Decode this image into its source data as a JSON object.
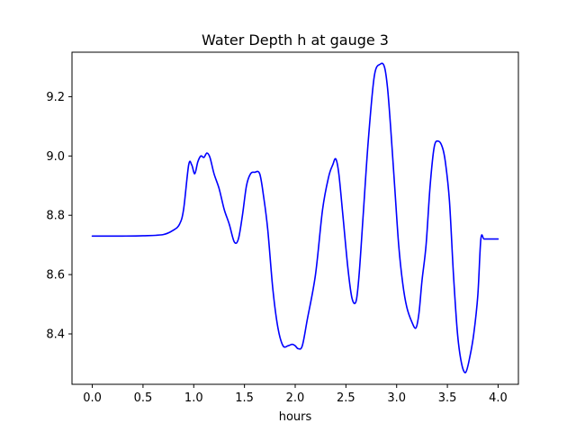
{
  "chart_data": {
    "type": "line",
    "title": "Water Depth h at gauge 3",
    "xlabel": "hours",
    "ylabel": "",
    "xlim": [
      -0.2,
      4.2
    ],
    "ylim": [
      8.23,
      9.35
    ],
    "grid": false,
    "legend": "none",
    "x_ticks": [
      0.0,
      0.5,
      1.0,
      1.5,
      2.0,
      2.5,
      3.0,
      3.5,
      4.0
    ],
    "x_tick_labels": [
      "0.0",
      "0.5",
      "1.0",
      "1.5",
      "2.0",
      "2.5",
      "3.0",
      "3.5",
      "4.0"
    ],
    "y_ticks": [
      8.4,
      8.6,
      8.8,
      9.0,
      9.2
    ],
    "y_tick_labels": [
      "8.4",
      "8.6",
      "8.8",
      "9.0",
      "9.2"
    ],
    "series": [
      {
        "color": "#0000ff",
        "x": [
          0.0,
          0.3,
          0.5,
          0.7,
          0.8,
          0.86,
          0.9,
          0.95,
          0.98,
          1.01,
          1.04,
          1.07,
          1.1,
          1.13,
          1.16,
          1.2,
          1.25,
          1.3,
          1.35,
          1.4,
          1.44,
          1.48,
          1.52,
          1.56,
          1.6,
          1.65,
          1.69,
          1.73,
          1.78,
          1.83,
          1.88,
          1.93,
          1.97,
          2.0,
          2.03,
          2.07,
          2.12,
          2.2,
          2.27,
          2.33,
          2.37,
          2.4,
          2.43,
          2.47,
          2.52,
          2.56,
          2.6,
          2.63,
          2.67,
          2.72,
          2.78,
          2.84,
          2.88,
          2.91,
          2.94,
          2.98,
          3.02,
          3.06,
          3.1,
          3.15,
          3.19,
          3.22,
          3.25,
          3.29,
          3.33,
          3.37,
          3.41,
          3.45,
          3.48,
          3.52,
          3.56,
          3.6,
          3.64,
          3.68,
          3.72,
          3.76,
          3.8,
          3.83,
          3.86,
          3.9,
          3.94,
          3.98,
          4.0
        ],
        "values": [
          8.73,
          8.73,
          8.731,
          8.735,
          8.75,
          8.77,
          8.82,
          8.97,
          8.97,
          8.94,
          8.98,
          9.0,
          8.995,
          9.01,
          8.995,
          8.94,
          8.89,
          8.82,
          8.77,
          8.71,
          8.72,
          8.8,
          8.9,
          8.94,
          8.945,
          8.94,
          8.86,
          8.75,
          8.55,
          8.42,
          8.36,
          8.36,
          8.365,
          8.36,
          8.35,
          8.36,
          8.45,
          8.6,
          8.82,
          8.93,
          8.97,
          8.99,
          8.94,
          8.8,
          8.62,
          8.52,
          8.51,
          8.6,
          8.8,
          9.05,
          9.27,
          9.31,
          9.3,
          9.23,
          9.1,
          8.9,
          8.7,
          8.57,
          8.49,
          8.44,
          8.42,
          8.47,
          8.58,
          8.7,
          8.9,
          9.03,
          9.05,
          9.03,
          8.98,
          8.85,
          8.6,
          8.4,
          8.3,
          8.27,
          8.32,
          8.4,
          8.53,
          8.72,
          8.72,
          8.72,
          8.72,
          8.72,
          8.72
        ]
      }
    ]
  }
}
